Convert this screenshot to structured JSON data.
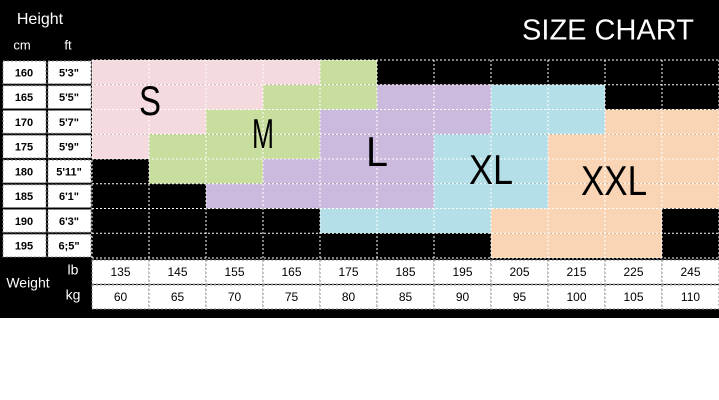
{
  "header": {
    "height": "Height",
    "cm": "cm",
    "ft": "ft",
    "title": "SIZE CHART"
  },
  "heights": [
    {
      "cm": "160",
      "ft": "5'3\""
    },
    {
      "cm": "165",
      "ft": "5'5\""
    },
    {
      "cm": "170",
      "ft": "5'7\""
    },
    {
      "cm": "175",
      "ft": "5'9\""
    },
    {
      "cm": "180",
      "ft": "5'11\""
    },
    {
      "cm": "185",
      "ft": "6'1\""
    },
    {
      "cm": "190",
      "ft": "6'3\""
    },
    {
      "cm": "195",
      "ft": "6;5\""
    }
  ],
  "weight": {
    "label": "Weight",
    "lb_label": "lb",
    "kg_label": "kg",
    "lb": [
      "135",
      "145",
      "155",
      "165",
      "175",
      "185",
      "195",
      "205",
      "215",
      "225",
      "245"
    ],
    "kg": [
      "60",
      "65",
      "70",
      "75",
      "80",
      "85",
      "90",
      "95",
      "100",
      "105",
      "110"
    ]
  },
  "sizes": [
    {
      "label": "S",
      "color": "#f4d9de"
    },
    {
      "label": "M",
      "color": "#c8de9f"
    },
    {
      "label": "L",
      "color": "#cbbade"
    },
    {
      "label": "XL",
      "color": "#b4dfe8"
    },
    {
      "label": "XXL",
      "color": "#f9d4b5"
    }
  ],
  "grid": [
    [
      "S",
      "S",
      "S",
      "S",
      "M",
      null,
      null,
      null,
      null,
      null,
      null
    ],
    [
      "S",
      "S",
      "S",
      "M",
      "M",
      "L",
      "L",
      "XL",
      "XL",
      null,
      null
    ],
    [
      "S",
      "S",
      "M",
      "M",
      "L",
      "L",
      "L",
      "XL",
      "XL",
      "XXL",
      "XXL"
    ],
    [
      "S",
      "M",
      "M",
      "M",
      "L",
      "L",
      "XL",
      "XL",
      "XXL",
      "XXL",
      "XXL"
    ],
    [
      null,
      "M",
      "M",
      "L",
      "L",
      "L",
      "XL",
      "XL",
      "XXL",
      "XXL",
      "XXL"
    ],
    [
      null,
      null,
      "L",
      "L",
      "L",
      "L",
      "XL",
      "XL",
      "XXL",
      "XXL",
      "XXL"
    ],
    [
      null,
      null,
      null,
      null,
      "XL",
      "XL",
      "XL",
      "XXL",
      "XXL",
      "XXL",
      null
    ],
    [
      null,
      null,
      null,
      null,
      null,
      null,
      null,
      "XXL",
      "XXL",
      "XXL",
      null
    ]
  ]
}
